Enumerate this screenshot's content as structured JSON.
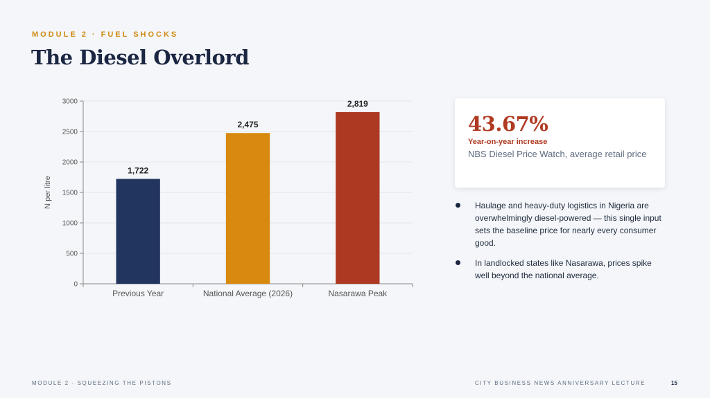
{
  "header": {
    "eyebrow": "MODULE 2 · FUEL SHOCKS",
    "title": "The Diesel Overlord"
  },
  "chart_data": {
    "type": "bar",
    "categories": [
      "Previous Year",
      "National Average (2026)",
      "Nasarawa Peak"
    ],
    "values": [
      1722,
      2475,
      2819
    ],
    "data_labels": [
      "1,722",
      "2,475",
      "2,819"
    ],
    "colors": [
      "#22355f",
      "#d88a10",
      "#ad3922"
    ],
    "ylabel": "N per litre",
    "xlabel": "",
    "ylim": [
      0,
      3000
    ],
    "yticks": [
      0,
      500,
      1000,
      1500,
      2000,
      2500,
      3000
    ],
    "grid": true,
    "legend": "none"
  },
  "stat_card": {
    "value": "43.67%",
    "label": "Year-on-year increase",
    "source": "NBS Diesel Price Watch, average retail price"
  },
  "bullets": [
    "Haulage and heavy-duty logistics in Nigeria are overwhelmingly diesel-powered — this single input sets the baseline price for nearly every consumer good.",
    "In landlocked states like Nasarawa, prices spike well beyond the national average."
  ],
  "footer": {
    "left": "MODULE 2 · SQUEEZING THE PISTONS",
    "right": "CITY BUSINESS NEWS ANNIVERSARY LECTURE",
    "page": "15"
  }
}
